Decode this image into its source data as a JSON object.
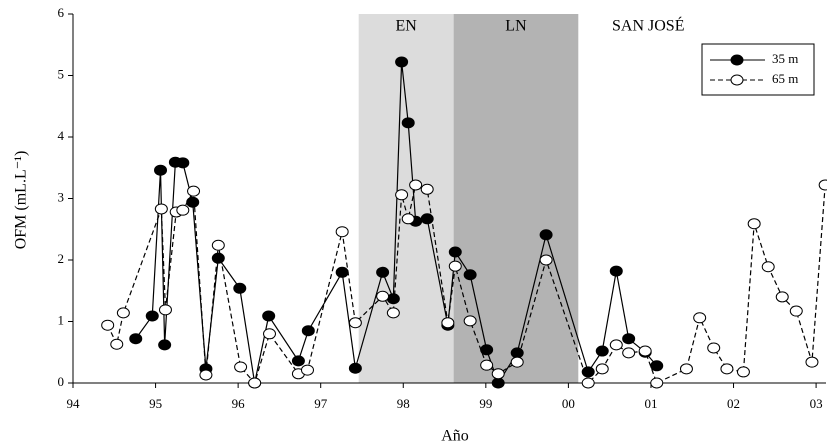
{
  "chart_data": {
    "type": "line",
    "x_label": "Año",
    "y_label": "OFM (mL.L⁻¹)",
    "annotation": "SAN JOSÉ",
    "xlim": [
      94,
      103.12
    ],
    "xticks": [
      94,
      95,
      96,
      97,
      98,
      99,
      {
        "value": 100,
        "label": "00"
      },
      {
        "value": 101,
        "label": "01"
      },
      {
        "value": 102,
        "label": "02"
      },
      {
        "value": 103,
        "label": "03"
      }
    ],
    "ylim": [
      0,
      6
    ],
    "yticks": [
      0,
      1,
      2,
      3,
      4,
      5,
      6
    ],
    "legend": "upper right",
    "regions": [
      {
        "label": "EN",
        "x": [
          97.46,
          98.61
        ],
        "color": "#dcdcdc"
      },
      {
        "label": "LN",
        "x": [
          98.61,
          100.12
        ],
        "color": "#b3b3b3"
      }
    ],
    "series": [
      {
        "name": "35 m",
        "color": "#000000",
        "marker_fill": "#000000",
        "dash": false,
        "x": [
          94.76,
          94.96,
          95.06,
          95.11,
          95.24,
          95.33,
          95.45,
          95.61,
          95.76,
          96.02,
          96.2,
          96.37,
          96.73,
          96.85,
          97.26,
          97.42,
          97.75,
          97.88,
          97.98,
          98.06,
          98.15,
          98.29,
          98.54,
          98.63,
          98.81,
          99.01,
          99.15,
          99.38,
          99.73,
          100.24,
          100.41,
          100.58,
          100.73,
          100.93,
          101.07
        ],
        "values": [
          0.72,
          1.09,
          3.46,
          0.62,
          3.59,
          3.58,
          2.94,
          0.23,
          2.03,
          1.54,
          0,
          1.09,
          0.36,
          0.85,
          1.8,
          0.24,
          1.8,
          1.37,
          5.22,
          4.23,
          2.63,
          2.67,
          0.94,
          2.13,
          1.76,
          0.54,
          0,
          0.49,
          2.41,
          0.18,
          0.52,
          1.82,
          0.72,
          0.5,
          0.28
        ]
      },
      {
        "name": "65 m",
        "color": "#000000",
        "marker_fill": "#ffffff",
        "dash": true,
        "x": [
          94.42,
          94.53,
          94.61,
          95.07,
          95.12,
          95.25,
          95.33,
          95.46,
          95.61,
          95.76,
          96.03,
          96.2,
          96.38,
          96.73,
          96.84,
          97.26,
          97.42,
          97.75,
          97.88,
          97.98,
          98.06,
          98.15,
          98.29,
          98.54,
          98.63,
          98.81,
          99.01,
          99.15,
          99.38,
          99.73,
          100.24,
          100.41,
          100.58,
          100.73,
          100.93,
          101.07,
          101.43,
          101.59,
          101.76,
          101.92,
          102.12,
          102.25,
          102.42,
          102.59,
          102.76,
          102.95,
          103.11
        ],
        "values": [
          0.94,
          0.63,
          1.14,
          2.83,
          1.19,
          2.78,
          2.81,
          3.12,
          0.13,
          2.24,
          0.26,
          0,
          0.8,
          0.15,
          0.21,
          2.46,
          0.98,
          1.41,
          1.14,
          3.06,
          2.67,
          3.22,
          3.15,
          0.98,
          1.9,
          1.01,
          0.29,
          0.15,
          0.34,
          2.0,
          0,
          0.23,
          0.62,
          0.49,
          0.52,
          0,
          0.23,
          1.06,
          0.57,
          0.23,
          0.18,
          2.59,
          1.89,
          1.4,
          1.17,
          0.34,
          3.22
        ]
      }
    ]
  }
}
